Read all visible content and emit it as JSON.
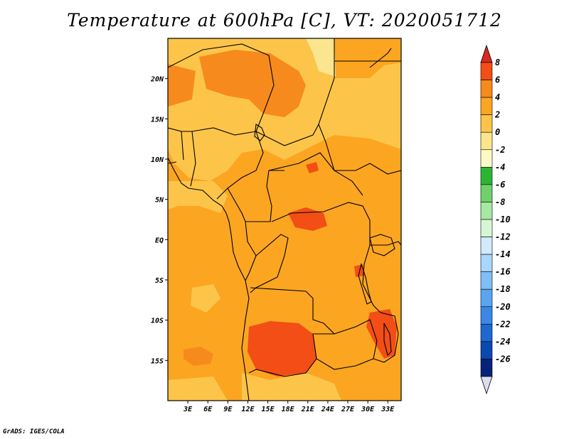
{
  "title": "Temperature at 600hPa [C], VT: 2020051712",
  "footer": "GrADS: IGES/COLA",
  "map": {
    "lon_range": [
      0,
      35
    ],
    "lat_range": [
      -20,
      25
    ],
    "lat_ticks": [
      {
        "value": 20,
        "label": "20N"
      },
      {
        "value": 15,
        "label": "15N"
      },
      {
        "value": 10,
        "label": "10N"
      },
      {
        "value": 5,
        "label": "5N"
      },
      {
        "value": 0,
        "label": "EQ"
      },
      {
        "value": -5,
        "label": "5S"
      },
      {
        "value": -10,
        "label": "10S"
      },
      {
        "value": -15,
        "label": "15S"
      }
    ],
    "lon_ticks": [
      {
        "value": 3,
        "label": "3E"
      },
      {
        "value": 6,
        "label": "6E"
      },
      {
        "value": 9,
        "label": "9E"
      },
      {
        "value": 12,
        "label": "12E"
      },
      {
        "value": 15,
        "label": "15E"
      },
      {
        "value": 18,
        "label": "18E"
      },
      {
        "value": 21,
        "label": "21E"
      },
      {
        "value": 24,
        "label": "24E"
      },
      {
        "value": 27,
        "label": "27E"
      },
      {
        "value": 30,
        "label": "30E"
      },
      {
        "value": 33,
        "label": "33E"
      }
    ]
  },
  "colorbar": {
    "levels": [
      "8",
      "6",
      "4",
      "2",
      "0",
      "-2",
      "-4",
      "-6",
      "-8",
      "-10",
      "-12",
      "-14",
      "-16",
      "-18",
      "-20",
      "-22",
      "-24",
      "-26"
    ],
    "colors": [
      "#d62a1e",
      "#f24e16",
      "#f78a1c",
      "#fba521",
      "#fcc54a",
      "#fbe58e",
      "#fdf9c6",
      "#2cb535",
      "#6fd16a",
      "#a7e8a2",
      "#d7f6d5",
      "#d2eafd",
      "#a9d6fb",
      "#7fbff6",
      "#5aa5ef",
      "#3a88e4",
      "#1d68d2",
      "#0c48b4",
      "#05237a"
    ],
    "top_arrow_color": "#d62a1e",
    "bottom_arrow_color": "#dcdcf2"
  },
  "fill_colors": {
    "base": "#fba521",
    "warm": "#f78a1c",
    "warmer": "#f24e16",
    "cool": "#fcc54a",
    "cooler": "#fbe58e"
  }
}
